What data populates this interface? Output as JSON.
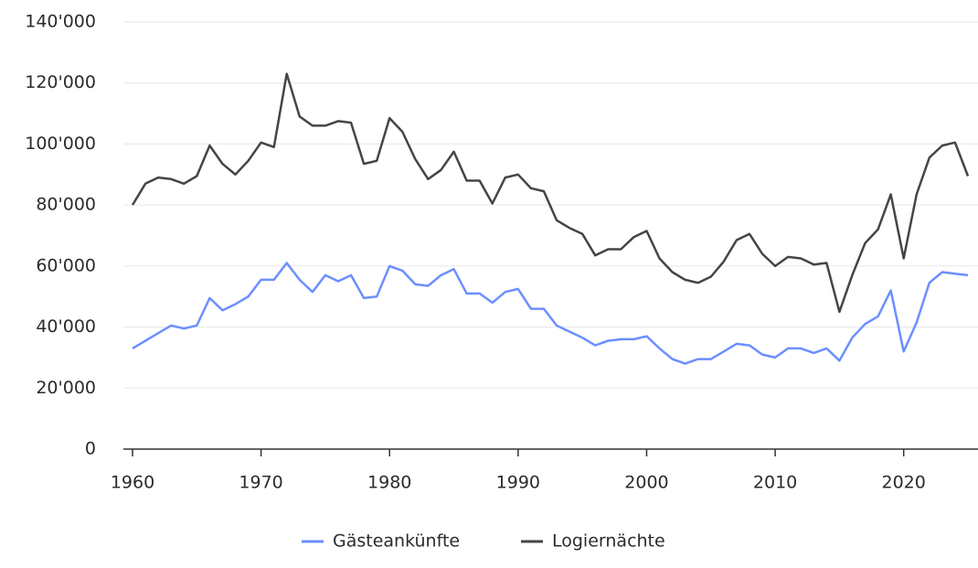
{
  "chart_data": {
    "type": "line",
    "x": [
      1960,
      1961,
      1962,
      1963,
      1964,
      1965,
      1966,
      1967,
      1968,
      1969,
      1970,
      1971,
      1972,
      1973,
      1974,
      1975,
      1976,
      1977,
      1978,
      1979,
      1980,
      1981,
      1982,
      1983,
      1984,
      1985,
      1986,
      1987,
      1988,
      1989,
      1990,
      1991,
      1992,
      1993,
      1994,
      1995,
      1996,
      1997,
      1998,
      1999,
      2000,
      2001,
      2002,
      2003,
      2004,
      2005,
      2006,
      2007,
      2008,
      2009,
      2010,
      2011,
      2012,
      2013,
      2014,
      2015,
      2016,
      2017,
      2018,
      2019,
      2020,
      2021,
      2022,
      2023,
      2024,
      2025
    ],
    "series": [
      {
        "name": "Gästeankünfte",
        "color": "#6b8fff",
        "values": [
          33000,
          35500,
          38000,
          40500,
          39500,
          40500,
          49500,
          45500,
          47500,
          50000,
          55500,
          55500,
          61000,
          55500,
          51500,
          57000,
          55000,
          57000,
          49500,
          50000,
          60000,
          58500,
          54000,
          53500,
          57000,
          59000,
          51000,
          51000,
          48000,
          51500,
          52500,
          46000,
          46000,
          40500,
          38500,
          36500,
          34000,
          35500,
          36000,
          36000,
          37000,
          33000,
          29500,
          28000,
          29500,
          29500,
          32000,
          34500,
          34000,
          31000,
          30000,
          33000,
          33000,
          31500,
          33000,
          29000,
          36500,
          41000,
          43500,
          52000,
          32000,
          41500,
          54500,
          58000,
          57500,
          57000
        ]
      },
      {
        "name": "Logiernächte",
        "color": "#454545",
        "values": [
          80000,
          87000,
          89000,
          88500,
          87000,
          89500,
          99500,
          93500,
          90000,
          94500,
          100500,
          99000,
          123000,
          109000,
          106000,
          106000,
          107500,
          107000,
          93500,
          94500,
          108500,
          104000,
          95000,
          88500,
          91500,
          97500,
          88000,
          88000,
          80500,
          89000,
          90000,
          85500,
          84500,
          75000,
          72500,
          70500,
          63500,
          65500,
          65500,
          69500,
          71500,
          62500,
          58000,
          55500,
          54500,
          56500,
          61500,
          68500,
          70500,
          64000,
          60000,
          63000,
          62500,
          60500,
          61000,
          45000,
          57000,
          67500,
          72000,
          83500,
          62500,
          83500,
          95500,
          99500,
          100500,
          89500
        ]
      }
    ],
    "xlim": [
      1960,
      2025
    ],
    "xticks": [
      1960,
      1970,
      1980,
      1990,
      2000,
      2010,
      2020
    ],
    "ylim": [
      0,
      140000
    ],
    "yticks": [
      0,
      {
        "value": 20000,
        "label": "20'000"
      },
      {
        "value": 40000,
        "label": "40'000"
      },
      {
        "value": 60000,
        "label": "60'000"
      },
      {
        "value": 80000,
        "label": "80'000"
      },
      {
        "value": 100000,
        "label": "100'000"
      },
      {
        "value": 120000,
        "label": "120'000"
      },
      {
        "value": 140000,
        "label": "140'000"
      }
    ],
    "grid": true,
    "legend": "bottom"
  }
}
